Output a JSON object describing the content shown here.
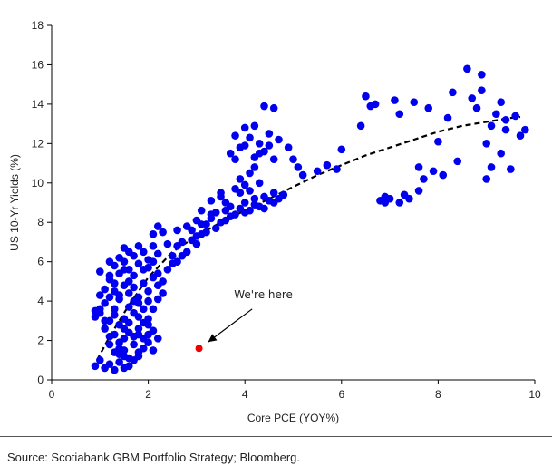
{
  "chart_data": {
    "type": "scatter",
    "xlabel": "Core PCE (YOY%)",
    "ylabel": "US 10-Yr Yields (%)",
    "xlim": [
      0,
      10
    ],
    "ylim": [
      0,
      18
    ],
    "xticks": [
      0,
      2,
      4,
      6,
      8,
      10
    ],
    "yticks": [
      0,
      2,
      4,
      6,
      8,
      10,
      12,
      14,
      16,
      18
    ],
    "grid": false,
    "legend": "none",
    "series": [
      {
        "color": "#0000ee",
        "points": [
          [
            0.9,
            0.7
          ],
          [
            1.0,
            1.0
          ],
          [
            1.1,
            0.6
          ],
          [
            1.2,
            0.8
          ],
          [
            1.3,
            0.5
          ],
          [
            1.4,
            0.9
          ],
          [
            1.5,
            1.2
          ],
          [
            1.6,
            0.7
          ],
          [
            1.5,
            0.6
          ],
          [
            1.7,
            1.0
          ],
          [
            1.8,
            1.4
          ],
          [
            1.9,
            1.6
          ],
          [
            2.0,
            1.9
          ],
          [
            2.1,
            1.5
          ],
          [
            1.3,
            1.4
          ],
          [
            1.4,
            1.9
          ],
          [
            1.5,
            2.1
          ],
          [
            1.6,
            2.4
          ],
          [
            1.7,
            1.8
          ],
          [
            1.2,
            2.2
          ],
          [
            1.8,
            2.6
          ],
          [
            1.9,
            2.1
          ],
          [
            2.0,
            2.8
          ],
          [
            1.1,
            2.6
          ],
          [
            1.2,
            3.0
          ],
          [
            1.3,
            3.3
          ],
          [
            1.4,
            2.8
          ],
          [
            1.5,
            3.1
          ],
          [
            1.6,
            2.9
          ],
          [
            1.7,
            3.4
          ],
          [
            1.8,
            3.2
          ],
          [
            1.9,
            3.6
          ],
          [
            2.0,
            3.1
          ],
          [
            2.1,
            2.5
          ],
          [
            2.2,
            2.1
          ],
          [
            1.0,
            3.4
          ],
          [
            0.9,
            3.2
          ],
          [
            1.0,
            3.6
          ],
          [
            1.1,
            3.9
          ],
          [
            1.2,
            4.2
          ],
          [
            1.3,
            4.5
          ],
          [
            1.4,
            4.1
          ],
          [
            1.5,
            4.8
          ],
          [
            1.6,
            4.4
          ],
          [
            1.7,
            4.7
          ],
          [
            1.8,
            4.2
          ],
          [
            1.9,
            4.9
          ],
          [
            2.0,
            4.5
          ],
          [
            2.1,
            5.2
          ],
          [
            2.2,
            4.8
          ],
          [
            2.3,
            5.0
          ],
          [
            1.0,
            5.5
          ],
          [
            1.2,
            5.1
          ],
          [
            1.3,
            5.8
          ],
          [
            1.4,
            5.4
          ],
          [
            1.5,
            6.0
          ],
          [
            1.6,
            5.6
          ],
          [
            1.7,
            6.3
          ],
          [
            1.8,
            5.9
          ],
          [
            1.9,
            6.5
          ],
          [
            2.0,
            6.1
          ],
          [
            2.1,
            6.8
          ],
          [
            2.2,
            6.4
          ],
          [
            1.5,
            6.7
          ],
          [
            1.6,
            6.5
          ],
          [
            1.4,
            6.2
          ],
          [
            1.2,
            6.0
          ],
          [
            1.8,
            6.8
          ],
          [
            2.1,
            7.4
          ],
          [
            2.2,
            7.8
          ],
          [
            2.3,
            7.5
          ],
          [
            2.4,
            6.9
          ],
          [
            2.5,
            6.3
          ],
          [
            2.6,
            6.8
          ],
          [
            2.7,
            7.0
          ],
          [
            2.8,
            6.5
          ],
          [
            2.9,
            7.1
          ],
          [
            3.0,
            6.9
          ],
          [
            3.1,
            7.4
          ],
          [
            3.2,
            7.9
          ],
          [
            3.3,
            8.2
          ],
          [
            3.4,
            8.5
          ],
          [
            3.5,
            8.0
          ],
          [
            3.6,
            8.6
          ],
          [
            3.7,
            8.8
          ],
          [
            3.8,
            8.4
          ],
          [
            3.9,
            8.7
          ],
          [
            4.0,
            9.0
          ],
          [
            4.1,
            8.6
          ],
          [
            4.2,
            9.2
          ],
          [
            4.3,
            8.8
          ],
          [
            4.4,
            9.3
          ],
          [
            4.5,
            9.1
          ],
          [
            4.6,
            9.5
          ],
          [
            4.7,
            9.2
          ],
          [
            2.6,
            6.0
          ],
          [
            2.7,
            6.3
          ],
          [
            2.9,
            7.6
          ],
          [
            3.1,
            7.9
          ],
          [
            3.3,
            8.4
          ],
          [
            3.5,
            9.5
          ],
          [
            3.6,
            9.0
          ],
          [
            3.8,
            9.7
          ],
          [
            3.9,
            10.2
          ],
          [
            4.0,
            9.9
          ],
          [
            4.1,
            10.5
          ],
          [
            4.2,
            10.8
          ],
          [
            3.7,
            11.5
          ],
          [
            3.8,
            12.4
          ],
          [
            3.9,
            11.8
          ],
          [
            4.0,
            12.8
          ],
          [
            4.1,
            12.3
          ],
          [
            4.2,
            12.9
          ],
          [
            4.3,
            12.0
          ],
          [
            4.4,
            11.6
          ],
          [
            4.5,
            12.5
          ],
          [
            4.6,
            11.2
          ],
          [
            4.4,
            13.9
          ],
          [
            4.6,
            13.8
          ],
          [
            4.3,
            11.5
          ],
          [
            4.9,
            11.8
          ],
          [
            5.0,
            11.2
          ],
          [
            5.1,
            10.8
          ],
          [
            5.2,
            10.4
          ],
          [
            5.5,
            10.6
          ],
          [
            5.7,
            10.9
          ],
          [
            5.9,
            10.7
          ],
          [
            6.0,
            11.7
          ],
          [
            6.4,
            12.9
          ],
          [
            6.5,
            14.4
          ],
          [
            6.6,
            13.9
          ],
          [
            6.7,
            14.0
          ],
          [
            6.8,
            9.1
          ],
          [
            6.9,
            9.0
          ],
          [
            7.0,
            9.2
          ],
          [
            7.1,
            14.2
          ],
          [
            7.2,
            13.5
          ],
          [
            7.3,
            9.4
          ],
          [
            7.4,
            9.2
          ],
          [
            7.5,
            14.1
          ],
          [
            7.6,
            10.8
          ],
          [
            7.7,
            10.2
          ],
          [
            7.8,
            13.8
          ],
          [
            7.9,
            10.6
          ],
          [
            8.0,
            12.1
          ],
          [
            8.1,
            10.4
          ],
          [
            8.3,
            14.6
          ],
          [
            8.4,
            11.1
          ],
          [
            8.6,
            15.8
          ],
          [
            8.8,
            13.8
          ],
          [
            8.9,
            14.7
          ],
          [
            9.0,
            10.2
          ],
          [
            9.1,
            10.8
          ],
          [
            9.2,
            13.5
          ],
          [
            9.3,
            14.1
          ],
          [
            9.4,
            12.7
          ],
          [
            9.5,
            10.7
          ],
          [
            9.6,
            13.4
          ],
          [
            9.7,
            12.4
          ],
          [
            9.8,
            12.7
          ],
          [
            9.1,
            12.9
          ],
          [
            8.9,
            15.5
          ],
          [
            9.3,
            11.5
          ],
          [
            9.0,
            12.0
          ],
          [
            1.1,
            3.0
          ],
          [
            1.3,
            2.3
          ],
          [
            1.5,
            1.5
          ],
          [
            1.7,
            2.2
          ],
          [
            1.9,
            2.9
          ],
          [
            2.0,
            2.3
          ],
          [
            1.6,
            1.1
          ],
          [
            1.4,
            1.6
          ],
          [
            1.8,
            1.2
          ],
          [
            2.1,
            3.6
          ],
          [
            2.2,
            4.1
          ],
          [
            2.3,
            4.4
          ],
          [
            2.0,
            5.7
          ],
          [
            1.7,
            5.3
          ],
          [
            1.3,
            4.9
          ],
          [
            1.1,
            4.6
          ],
          [
            1.0,
            4.3
          ],
          [
            0.9,
            3.5
          ],
          [
            2.4,
            5.6
          ],
          [
            2.5,
            5.9
          ],
          [
            3.0,
            7.3
          ],
          [
            3.2,
            7.5
          ],
          [
            3.4,
            7.7
          ],
          [
            3.6,
            8.1
          ],
          [
            3.7,
            8.3
          ],
          [
            4.0,
            8.5
          ],
          [
            4.2,
            8.9
          ],
          [
            4.4,
            8.7
          ],
          [
            4.6,
            9.0
          ],
          [
            4.8,
            9.4
          ],
          [
            1.6,
            3.7
          ],
          [
            1.8,
            3.9
          ],
          [
            1.4,
            4.3
          ],
          [
            1.2,
            5.3
          ],
          [
            1.6,
            5.0
          ],
          [
            1.9,
            5.6
          ],
          [
            2.1,
            6.0
          ],
          [
            2.2,
            5.4
          ],
          [
            1.5,
            5.6
          ],
          [
            1.7,
            4.0
          ],
          [
            2.0,
            4.0
          ],
          [
            1.3,
            3.6
          ],
          [
            1.5,
            2.6
          ],
          [
            1.8,
            2.3
          ],
          [
            1.2,
            1.8
          ],
          [
            1.4,
            1.3
          ],
          [
            2.6,
            7.6
          ],
          [
            2.8,
            7.8
          ],
          [
            3.0,
            8.1
          ],
          [
            3.1,
            8.6
          ],
          [
            3.3,
            9.1
          ],
          [
            3.5,
            9.3
          ],
          [
            3.9,
            9.5
          ],
          [
            4.1,
            9.6
          ],
          [
            4.3,
            10.0
          ],
          [
            3.8,
            11.2
          ],
          [
            4.0,
            11.9
          ],
          [
            4.2,
            11.3
          ],
          [
            4.5,
            11.9
          ],
          [
            4.7,
            12.2
          ],
          [
            7.6,
            9.6
          ],
          [
            7.2,
            9.0
          ],
          [
            6.9,
            9.3
          ],
          [
            8.2,
            13.3
          ],
          [
            8.7,
            14.3
          ],
          [
            9.4,
            13.2
          ]
        ]
      },
      {
        "color": "#ee0000",
        "points": [
          [
            3.05,
            1.6
          ]
        ]
      }
    ],
    "trendline": {
      "style": "dashed",
      "color": "#000000",
      "points": [
        [
          0.85,
          0.6
        ],
        [
          1.2,
          2.2
        ],
        [
          1.6,
          3.8
        ],
        [
          2.0,
          5.2
        ],
        [
          2.5,
          6.5
        ],
        [
          3.0,
          7.3
        ],
        [
          3.5,
          8.0
        ],
        [
          4.0,
          8.6
        ],
        [
          4.5,
          9.2
        ],
        [
          5.0,
          9.8
        ],
        [
          5.5,
          10.4
        ],
        [
          6.0,
          10.9
        ],
        [
          6.5,
          11.4
        ],
        [
          7.0,
          11.8
        ],
        [
          7.5,
          12.2
        ],
        [
          8.0,
          12.6
        ],
        [
          8.5,
          12.9
        ],
        [
          9.0,
          13.1
        ],
        [
          9.5,
          13.3
        ],
        [
          9.7,
          13.35
        ]
      ]
    },
    "annotation": {
      "text": "We're here",
      "target": [
        3.05,
        1.6
      ],
      "label_at": [
        4.0,
        3.6
      ]
    }
  },
  "source": "Source: Scotiabank GBM Portfolio Strategy; Bloomberg."
}
